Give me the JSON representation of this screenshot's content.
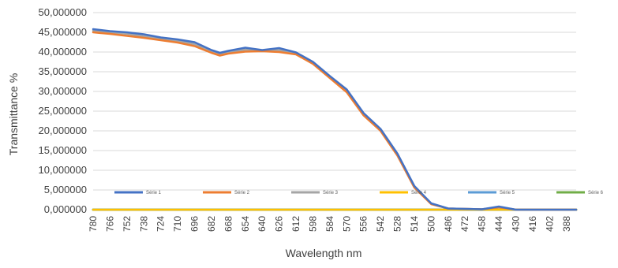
{
  "chart_data": {
    "type": "line",
    "title": "",
    "xlabel": "Wavelength nm",
    "ylabel": "Transmittance %",
    "ylim": [
      0,
      50
    ],
    "y_ticks": [
      "0,000000",
      "5,000000",
      "10,000000",
      "15,000000",
      "20,000000",
      "25,000000",
      "30,000000",
      "35,000000",
      "40,000000",
      "45,000000",
      "50,000000"
    ],
    "x_range": [
      780,
      380
    ],
    "x_ticks": [
      "780",
      "766",
      "752",
      "738",
      "724",
      "710",
      "696",
      "682",
      "668",
      "654",
      "640",
      "626",
      "612",
      "598",
      "584",
      "570",
      "556",
      "542",
      "528",
      "514",
      "500",
      "486",
      "472",
      "458",
      "444",
      "430",
      "416",
      "402",
      "388"
    ],
    "grid": true,
    "legend_position": "inside-bottom",
    "series": [
      {
        "name": "Série 1",
        "color": "#4472C4",
        "x": [
          780,
          766,
          752,
          738,
          724,
          710,
          696,
          682,
          675,
          668,
          654,
          640,
          626,
          612,
          598,
          584,
          570,
          556,
          542,
          528,
          514,
          500,
          486,
          472,
          458,
          444,
          430,
          416,
          402,
          388,
          380
        ],
        "values": [
          45.8,
          45.3,
          45.0,
          44.5,
          43.7,
          43.2,
          42.5,
          40.5,
          39.8,
          40.3,
          41.1,
          40.5,
          41.0,
          39.9,
          37.5,
          33.9,
          30.5,
          24.5,
          20.5,
          14.2,
          6.0,
          1.6,
          0.3,
          0.2,
          0.1,
          0.8,
          0.0,
          0.0,
          0.0,
          0.0,
          0.0
        ]
      },
      {
        "name": "Série 2",
        "color": "#ED7D31",
        "x": [
          780,
          766,
          752,
          738,
          724,
          710,
          696,
          682,
          675,
          668,
          654,
          640,
          626,
          612,
          598,
          584,
          570,
          556,
          542,
          528,
          514,
          500,
          486,
          472,
          458,
          444,
          430,
          416,
          402,
          388,
          380
        ],
        "values": [
          45.0,
          44.6,
          44.1,
          43.6,
          43.0,
          42.4,
          41.5,
          39.8,
          39.1,
          39.6,
          40.1,
          40.2,
          40.0,
          39.4,
          37.0,
          33.4,
          29.8,
          23.9,
          20.0,
          13.7,
          5.6,
          1.4,
          0.3,
          0.2,
          0.1,
          0.6,
          0.0,
          0.0,
          0.0,
          0.0,
          0.0
        ]
      },
      {
        "name": "Série 3",
        "color": "#A5A5A5",
        "x": [
          780,
          766,
          752,
          738,
          724,
          710,
          696,
          682,
          675,
          668,
          654,
          640,
          626,
          612,
          598,
          584,
          570,
          556,
          542,
          528,
          514,
          500,
          486,
          472,
          458,
          444,
          430,
          416,
          402,
          388,
          380
        ],
        "values": [
          45.4,
          45.0,
          44.6,
          44.0,
          43.4,
          42.8,
          42.0,
          40.1,
          39.5,
          39.9,
          40.6,
          40.4,
          40.5,
          39.6,
          37.2,
          33.6,
          30.1,
          24.2,
          20.2,
          13.9,
          5.8,
          1.5,
          0.3,
          0.2,
          0.1,
          0.7,
          0.0,
          0.0,
          0.0,
          0.0,
          0.0
        ]
      },
      {
        "name": "Série 4",
        "color": "#FFC000",
        "x": [
          780,
          380
        ],
        "values": [
          0,
          0
        ]
      },
      {
        "name": "Série 5",
        "color": "#5B9BD5",
        "x": [
          780,
          380
        ],
        "values": [
          0,
          0
        ]
      },
      {
        "name": "Série 6",
        "color": "#70AD47",
        "x": [
          780,
          380
        ],
        "values": [
          0,
          0
        ]
      }
    ]
  }
}
